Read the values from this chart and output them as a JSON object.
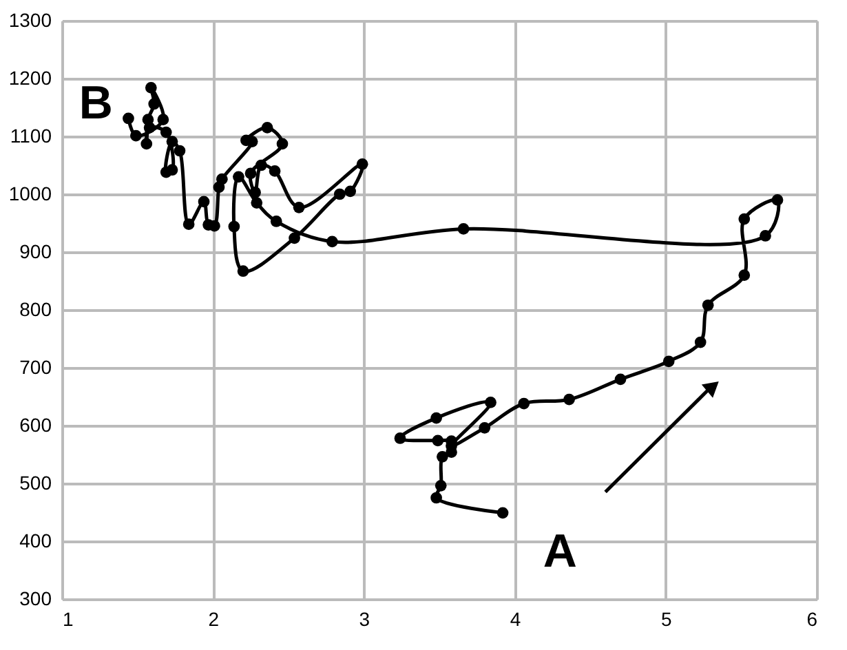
{
  "chart_data": {
    "type": "line",
    "x": [
      3.92,
      3.48,
      3.51,
      3.52,
      3.58,
      3.58,
      3.49,
      3.24,
      3.48,
      3.84,
      3.58,
      3.8,
      4.06,
      4.36,
      4.7,
      5.02,
      5.23,
      5.28,
      5.52,
      5.52,
      5.74,
      5.66,
      3.66,
      2.79,
      2.42,
      2.29,
      2.17,
      2.14,
      2.2,
      2.54,
      2.84,
      2.91,
      2.99,
      2.57,
      2.41,
      2.32,
      2.28,
      2.25,
      2.46,
      2.36,
      2.22,
      2.26,
      2.06,
      2.04,
      2.01,
      1.97,
      1.94,
      1.84,
      1.78,
      1.73,
      1.69,
      1.73,
      1.69,
      1.58,
      1.56,
      1.57,
      1.61,
      1.59,
      1.67,
      1.49,
      1.44
    ],
    "values": [
      449,
      475,
      496,
      546,
      554,
      573,
      574,
      578,
      613,
      640,
      565,
      596,
      638,
      645,
      680,
      711,
      744,
      808,
      860,
      957,
      990,
      928,
      940,
      918,
      953,
      985,
      1030,
      944,
      867,
      924,
      1000,
      1005,
      1052,
      977,
      1040,
      1050,
      1003,
      1036,
      1087,
      1115,
      1093,
      1091,
      1026,
      1012,
      945,
      947,
      987,
      948,
      1075,
      1091,
      1038,
      1042,
      1107,
      1115,
      1087,
      1129,
      1156,
      1184,
      1129,
      1101,
      1131
    ],
    "color": "#000000",
    "marker": "circle",
    "line_style": "solid",
    "xlim": [
      1,
      6
    ],
    "xticks": [
      1,
      2,
      3,
      4,
      5,
      6
    ],
    "ylim": [
      300,
      1300
    ],
    "yticks": [
      300,
      400,
      500,
      600,
      700,
      800,
      900,
      1000,
      1100,
      1200,
      1300
    ],
    "grid": true,
    "annotations": [
      "A",
      "B"
    ]
  }
}
